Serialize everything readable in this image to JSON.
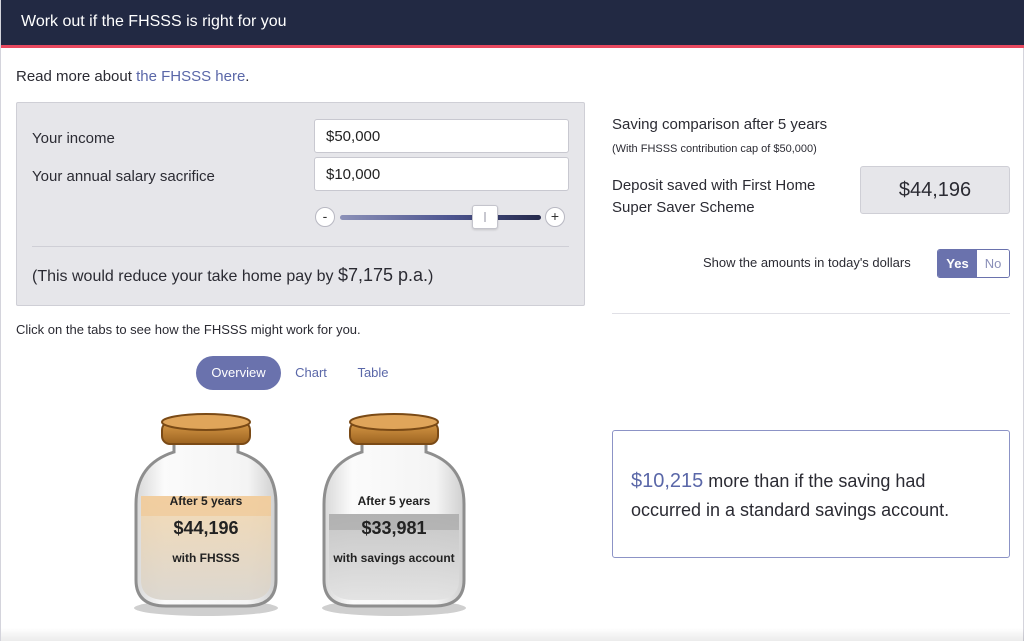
{
  "header": {
    "title": "Work out if the FHSSS is right for you"
  },
  "intro": {
    "prefix": "Read more about ",
    "link_text": "the FHSSS here",
    "suffix": "."
  },
  "inputs": {
    "income_label": "Your income",
    "income_value": "$50,000",
    "sacrifice_label": "Your annual salary sacrifice",
    "sacrifice_value": "$10,000",
    "slider_minus": "-",
    "slider_plus": "+",
    "slider_position": 0.72
  },
  "reduction": {
    "prefix": "(This would reduce your take home pay by ",
    "amount": "$7,175 p.a.",
    "suffix": ")"
  },
  "instructions": "Click on the tabs to see how the FHSSS might work for you.",
  "tabs": [
    {
      "label": "Overview",
      "active": true
    },
    {
      "label": "Chart",
      "active": false
    },
    {
      "label": "Table",
      "active": false
    }
  ],
  "jars": [
    {
      "heading": "After 5 years",
      "amount": "$44,196",
      "caption": "with FHSSS",
      "fill_color": "#e8b87a"
    },
    {
      "heading": "After 5 years",
      "amount": "$33,981",
      "caption": "with savings account",
      "fill_color": "#b4b4b4"
    }
  ],
  "comparison": {
    "title": "Saving comparison after 5 years",
    "subtitle": "(With FHSSS contribution cap of $50,000)",
    "deposit_label": "Deposit saved with First Home Super Saver Scheme",
    "deposit_value": "$44,196",
    "todays_dollars_label": "Show the amounts in today's dollars",
    "toggle_yes": "Yes",
    "toggle_no": "No"
  },
  "result": {
    "amount": "$10,215",
    "text": " more than if the saving had occurred in a standard savings account."
  },
  "colors": {
    "header_bg": "#222943",
    "accent_line": "#e8485f",
    "brand": "#6a72ad",
    "link": "#5a67a8"
  }
}
